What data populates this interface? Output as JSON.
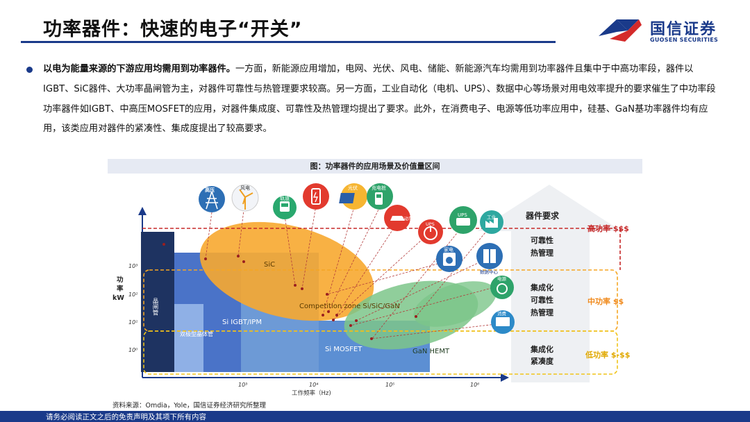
{
  "header": {
    "title": "功率器件：快速的电子“开关”",
    "logo_cn": "国信证券",
    "logo_en": "GUOSEN SECURITIES"
  },
  "body": {
    "lead": "以电为能量来源的下游应用均需用到功率器件。",
    "text": "一方面，新能源应用增加，电网、光伏、风电、储能、新能源汽车均需用到功率器件且集中于中高功率段，器件以IGBT、SiC器件、大功率晶闸管为主，对器件可靠性与热管理要求较高。另一方面，工业自动化（电机、UPS）、数据中心等场景对用电效率提升的要求催生了中功率段功率器件如IGBT、中高压MOSFET的应用，对器件集成度、可靠性及热管理均提出了要求。此外，在消费电子、电源等低功率应用中，硅基、GaN基功率器件均有应用，该类应用对器件的紧凑性、集成度提出了较高要求。"
  },
  "figure": {
    "title": "图：功率器件的应用场景及价值量区间",
    "y_axis_label": [
      "功",
      "率",
      "kW"
    ],
    "x_axis_label": "工作频率（Hz)",
    "y_ticks": [
      "10³",
      "10²",
      "10¹",
      "10⁰"
    ],
    "x_ticks": [
      "10³",
      "10⁴",
      "10⁵",
      "10⁶"
    ],
    "regions": {
      "thyristor": "晶闸管",
      "bjt": "双极型晶体管",
      "si_igbt": "Si IGBT/IPM",
      "sic": "SiC",
      "competition": "Competition zone Si/SiC/GaN",
      "si_mosfet": "Si MOSFET",
      "gan": "GaN HEMT"
    },
    "icons": {
      "grid": "高压",
      "wind": "风电",
      "rail": "轨道",
      "storage": "",
      "pv": "光伏",
      "charger": "充电桩",
      "ev": "电动车",
      "ups_a": "UPS",
      "ups_b": "UPS",
      "industry": "工业",
      "appliance": "家电",
      "datacenter": "数据中心",
      "power": "电源",
      "consumer": "消费"
    },
    "requirements_title": "器件要求",
    "high": {
      "reqs": [
        "可靠性",
        "热管理"
      ],
      "label": "高功率 $$$"
    },
    "mid": {
      "reqs": [
        "集成化",
        "可靠性",
        "热管理"
      ],
      "label": "中功率 $$"
    },
    "low": {
      "reqs": [
        "集成化",
        "紧凑度"
      ],
      "label": "低功率 $-$$"
    },
    "colors": {
      "high": "#c62828",
      "mid": "#f5a623",
      "low": "#f0c419",
      "sic": "#f7a830",
      "gan": "#7cc58a",
      "thyristor": "#1e3361",
      "igbt": "#4a73c8",
      "mosfet": "#6d9ad6"
    }
  },
  "source": "资料来源：Omdia，Yole，国信证券经济研究所整理",
  "footer": "请务必阅读正文之后的免责声明及其项下所有内容"
}
